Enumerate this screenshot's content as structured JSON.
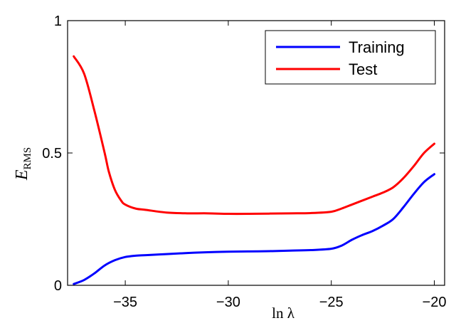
{
  "chart_data": {
    "type": "line",
    "xlabel": "ln λ",
    "ylabel_main": "E",
    "ylabel_sub": "RMS",
    "xlim": [
      -37.8,
      -19.5
    ],
    "ylim": [
      0,
      1
    ],
    "xticks": [
      {
        "value": -35,
        "label": "−35"
      },
      {
        "value": -30,
        "label": "−30"
      },
      {
        "value": -25,
        "label": "−25"
      },
      {
        "value": -20,
        "label": "−20"
      }
    ],
    "yticks": [
      {
        "value": 0,
        "label": "0"
      },
      {
        "value": 0.5,
        "label": "0.5"
      },
      {
        "value": 1,
        "label": "1"
      }
    ],
    "grid": false,
    "legend_position": "top-right",
    "series": [
      {
        "name": "Training",
        "color": "#0000ff",
        "x": [
          -37.5,
          -37.0,
          -36.5,
          -36.0,
          -35.5,
          -35.0,
          -34.5,
          -34.0,
          -33.0,
          -32.0,
          -31.0,
          -30.0,
          -29.0,
          -28.0,
          -27.0,
          -26.0,
          -25.0,
          -24.5,
          -24.0,
          -23.5,
          -23.0,
          -22.5,
          -22.0,
          -21.5,
          -21.0,
          -20.5,
          -20.0
        ],
        "values": [
          0.005,
          0.02,
          0.045,
          0.075,
          0.095,
          0.107,
          0.112,
          0.114,
          0.118,
          0.122,
          0.125,
          0.127,
          0.128,
          0.129,
          0.131,
          0.133,
          0.138,
          0.15,
          0.172,
          0.19,
          0.205,
          0.225,
          0.25,
          0.295,
          0.345,
          0.39,
          0.42
        ]
      },
      {
        "name": "Test",
        "color": "#ff0000",
        "x": [
          -37.5,
          -37.0,
          -36.5,
          -36.0,
          -35.8,
          -35.5,
          -35.2,
          -35.0,
          -34.5,
          -34.0,
          -33.0,
          -32.0,
          -31.0,
          -30.0,
          -29.0,
          -28.0,
          -27.0,
          -26.0,
          -25.0,
          -24.5,
          -24.0,
          -23.5,
          -23.0,
          -22.5,
          -22.0,
          -21.5,
          -21.0,
          -20.5,
          -20.0
        ],
        "values": [
          0.865,
          0.8,
          0.66,
          0.5,
          0.43,
          0.36,
          0.32,
          0.305,
          0.29,
          0.285,
          0.275,
          0.272,
          0.272,
          0.27,
          0.27,
          0.271,
          0.272,
          0.273,
          0.278,
          0.29,
          0.305,
          0.32,
          0.335,
          0.35,
          0.37,
          0.405,
          0.45,
          0.5,
          0.535
        ]
      }
    ]
  }
}
